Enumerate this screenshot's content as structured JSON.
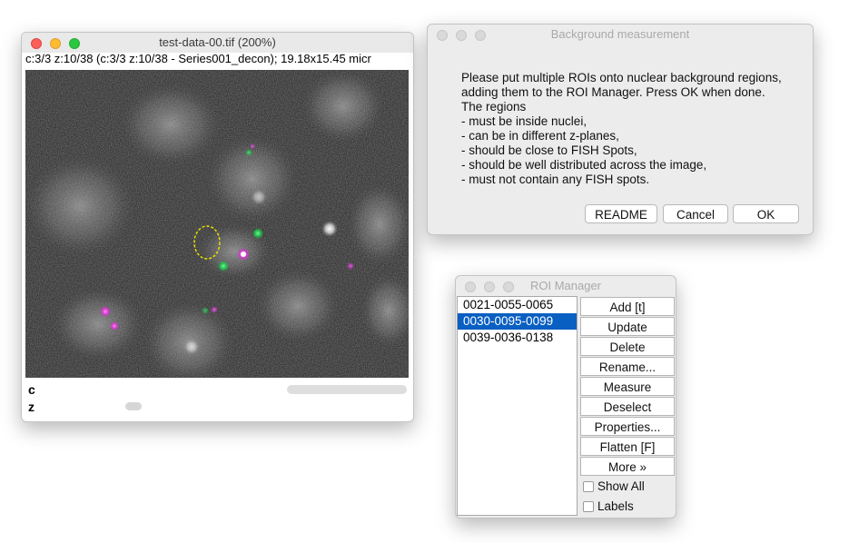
{
  "image_window": {
    "title": "test-data-00.tif (200%)",
    "subtitle": "c:3/3 z:10/38 (c:3/3 z:10/38 - Series001_decon); 19.18x15.45 micr",
    "slider_c_label": "c",
    "slider_z_label": "z"
  },
  "bg_dialog": {
    "title": "Background measurement",
    "lines": [
      "Please put multiple ROIs onto nuclear background regions,",
      "adding them to the ROI Manager. Press OK when done.",
      "The regions",
      "- must be inside nuclei,",
      "- can be in different z-planes,",
      "- should be close to FISH Spots,",
      "- should be well distributed across the image,",
      "- must not contain any FISH spots."
    ],
    "buttons": {
      "readme": "README",
      "cancel": "Cancel",
      "ok": "OK"
    }
  },
  "roi_manager": {
    "title": "ROI Manager",
    "items": [
      "0021-0055-0065",
      "0030-0095-0099",
      "0039-0036-0138"
    ],
    "selected_index": 1,
    "buttons": {
      "add": "Add [t]",
      "update": "Update",
      "delete": "Delete",
      "rename": "Rename...",
      "measure": "Measure",
      "deselect": "Deselect",
      "properties": "Properties...",
      "flatten": "Flatten [F]",
      "more": "More »"
    },
    "checkboxes": {
      "show_all": "Show All",
      "labels": "Labels"
    }
  },
  "colors": {
    "selection": "#0a5fc2",
    "roi_outline": "#e8e000",
    "spot_green": "#19c84a",
    "spot_magenta": "#e030d8"
  }
}
